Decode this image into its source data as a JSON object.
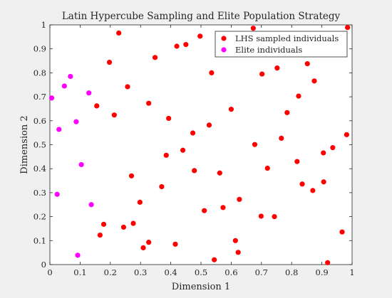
{
  "chart_data": {
    "type": "scatter",
    "title": "Latin Hypercube Sampling and Elite Population Strategy",
    "xlabel": "Dimension 1",
    "ylabel": "Dimension 2",
    "xlim": [
      0,
      1
    ],
    "ylim": [
      0,
      1
    ],
    "xticks": [
      "0",
      "0.1",
      "0.2",
      "0.3",
      "0.4",
      "0.5",
      "0.6",
      "0.7",
      "0.8",
      "0.9",
      "1"
    ],
    "yticks": [
      "0",
      "0.1",
      "0.2",
      "0.3",
      "0.4",
      "0.5",
      "0.6",
      "0.7",
      "0.8",
      "0.9",
      "1"
    ],
    "grid": false,
    "legend_position": "top-right",
    "series": [
      {
        "name": "LHS sampled individuals",
        "color": "#ff0000",
        "points": [
          [
            0.228,
            0.966
          ],
          [
            0.197,
            0.844
          ],
          [
            0.257,
            0.742
          ],
          [
            0.155,
            0.662
          ],
          [
            0.213,
            0.624
          ],
          [
            0.348,
            0.864
          ],
          [
            0.42,
            0.911
          ],
          [
            0.45,
            0.918
          ],
          [
            0.497,
            0.953
          ],
          [
            0.673,
            0.986
          ],
          [
            0.985,
            0.989
          ],
          [
            0.852,
            0.838
          ],
          [
            0.752,
            0.82
          ],
          [
            0.702,
            0.795
          ],
          [
            0.875,
            0.766
          ],
          [
            0.535,
            0.8
          ],
          [
            0.823,
            0.703
          ],
          [
            0.327,
            0.673
          ],
          [
            0.6,
            0.648
          ],
          [
            0.785,
            0.634
          ],
          [
            0.393,
            0.61
          ],
          [
            0.527,
            0.582
          ],
          [
            0.473,
            0.549
          ],
          [
            0.982,
            0.542
          ],
          [
            0.766,
            0.527
          ],
          [
            0.678,
            0.501
          ],
          [
            0.936,
            0.488
          ],
          [
            0.905,
            0.466
          ],
          [
            0.385,
            0.456
          ],
          [
            0.44,
            0.477
          ],
          [
            0.818,
            0.43
          ],
          [
            0.72,
            0.402
          ],
          [
            0.478,
            0.392
          ],
          [
            0.562,
            0.382
          ],
          [
            0.27,
            0.37
          ],
          [
            0.37,
            0.325
          ],
          [
            0.906,
            0.345
          ],
          [
            0.835,
            0.336
          ],
          [
            0.87,
            0.309
          ],
          [
            0.627,
            0.272
          ],
          [
            0.298,
            0.26
          ],
          [
            0.573,
            0.238
          ],
          [
            0.511,
            0.225
          ],
          [
            0.178,
            0.168
          ],
          [
            0.276,
            0.172
          ],
          [
            0.699,
            0.202
          ],
          [
            0.743,
            0.2
          ],
          [
            0.244,
            0.156
          ],
          [
            0.166,
            0.123
          ],
          [
            0.967,
            0.136
          ],
          [
            0.614,
            0.1
          ],
          [
            0.327,
            0.093
          ],
          [
            0.415,
            0.085
          ],
          [
            0.309,
            0.07
          ],
          [
            0.623,
            0.051
          ],
          [
            0.544,
            0.02
          ],
          [
            0.919,
            0.008
          ]
        ]
      },
      {
        "name": "Elite individuals",
        "color": "#ff00ff",
        "points": [
          [
            0.068,
            0.785
          ],
          [
            0.048,
            0.745
          ],
          [
            0.129,
            0.716
          ],
          [
            0.006,
            0.695
          ],
          [
            0.087,
            0.596
          ],
          [
            0.03,
            0.564
          ],
          [
            0.104,
            0.417
          ],
          [
            0.024,
            0.293
          ],
          [
            0.137,
            0.25
          ],
          [
            0.092,
            0.039
          ]
        ]
      }
    ]
  }
}
